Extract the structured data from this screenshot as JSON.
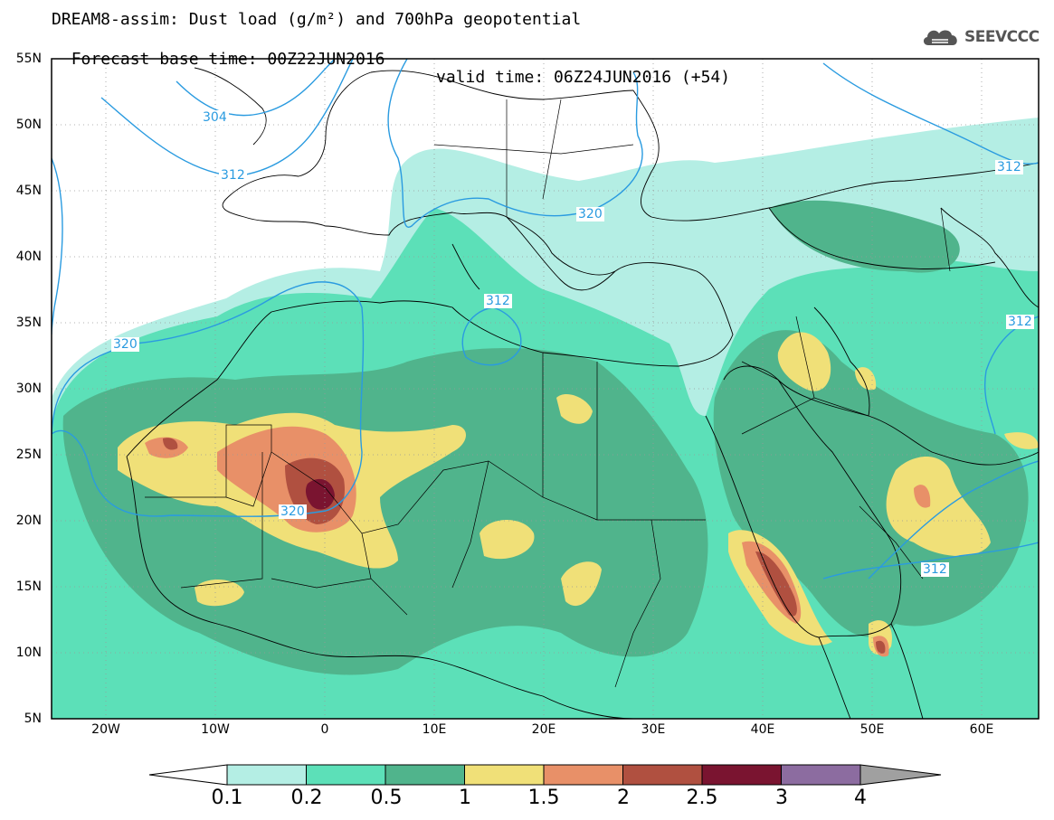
{
  "header": {
    "title_line1": "DREAM8-assim: Dust load (g/m²) and 700hPa geopotential",
    "base_time": "Forecast base time: 00Z22JUN2016",
    "valid_time": "valid time: 06Z24JUN2016 (+54)",
    "brand": "SEEVCCC"
  },
  "map": {
    "lat_labels": [
      "55N",
      "50N",
      "45N",
      "40N",
      "35N",
      "30N",
      "25N",
      "20N",
      "15N",
      "10N",
      "5N"
    ],
    "lon_labels": [
      "20W",
      "10W",
      "0",
      "10E",
      "20E",
      "30E",
      "40E",
      "50E",
      "60E"
    ],
    "contour_labels": [
      "304",
      "312",
      "320",
      "312",
      "320",
      "312",
      "312",
      "320",
      "312",
      "312",
      "320"
    ]
  },
  "legend": {
    "labels": [
      "0.1",
      "0.2",
      "0.5",
      "1",
      "1.5",
      "2",
      "2.5",
      "3",
      "4"
    ],
    "colors": [
      "#b4eee4",
      "#5ce0b8",
      "#50b48c",
      "#f0e078",
      "#e89068",
      "#b05040",
      "#7a1430",
      "#8c6ca0",
      "#a0a0a0"
    ]
  },
  "colors": {
    "dust_0_1": "#b4eee4",
    "dust_0_2": "#5ce0b8",
    "dust_0_5": "#50b48c",
    "dust_1": "#f0e078",
    "dust_1_5": "#e89068",
    "dust_2": "#b05040",
    "dust_2_5": "#7a1430",
    "contour_line": "#2a9be0"
  }
}
